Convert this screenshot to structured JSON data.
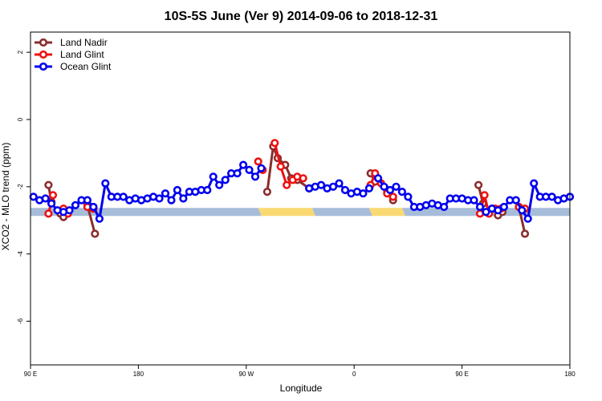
{
  "chart_data": {
    "type": "line",
    "title": "10S-5S June (Ver 9)   2014-09-06 to 2018-12-31",
    "xlabel": "Longitude",
    "ylabel": "XCO2 - MLO trend (ppm)",
    "xlim": [
      0,
      360
    ],
    "ylim": [
      -7.3,
      2.6
    ],
    "x_ticks": [
      {
        "value": 0,
        "label": "90 E"
      },
      {
        "value": 72,
        "label": "180"
      },
      {
        "value": 144,
        "label": "90 W"
      },
      {
        "value": 216,
        "label": "0"
      },
      {
        "value": 288,
        "label": "90 E"
      },
      {
        "value": 360,
        "label": "180"
      }
    ],
    "y_ticks": [
      {
        "value": 2,
        "label": "2"
      },
      {
        "value": 0,
        "label": "0"
      },
      {
        "value": -2,
        "label": "-2"
      },
      {
        "value": -4,
        "label": "-4"
      },
      {
        "value": -6,
        "label": "-6"
      }
    ],
    "land_ocean_band": {
      "y": -2.75,
      "segments": [
        {
          "x_start": 0,
          "x_end": 152,
          "kind": "ocean"
        },
        {
          "x_start": 152,
          "x_end": 188,
          "kind": "land"
        },
        {
          "x_start": 188,
          "x_end": 226,
          "kind": "ocean"
        },
        {
          "x_start": 226,
          "x_end": 248,
          "kind": "land"
        },
        {
          "x_start": 248,
          "x_end": 360,
          "kind": "ocean"
        }
      ],
      "colors": {
        "ocean": "#a6bcd9",
        "land": "#fad872"
      }
    },
    "legend": {
      "position": "top-left"
    },
    "series": [
      {
        "name": "Land Nadir",
        "color": "#8b2d2d",
        "segments": [
          {
            "x": [
              12,
              14
            ],
            "y": [
              -1.95,
              -2.45
            ]
          },
          {
            "x": [
              20,
              22
            ],
            "y": [
              -2.8,
              -2.9
            ]
          },
          {
            "x": [
              38,
              43
            ],
            "y": [
              -2.55,
              -3.4
            ]
          },
          {
            "x": [
              158,
              162,
              165,
              170,
              174
            ],
            "y": [
              -2.15,
              -0.8,
              -1.15,
              -1.35,
              -1.75
            ]
          },
          {
            "x": [
              178,
              186
            ],
            "y": [
              -1.8,
              -2.05
            ]
          },
          {
            "x": [
              227,
              230
            ],
            "y": [
              -1.6,
              -1.85
            ]
          },
          {
            "x": [
              238,
              242
            ],
            "y": [
              -2.1,
              -2.4
            ]
          },
          {
            "x": [
              299,
              302
            ],
            "y": [
              -1.95,
              -2.5
            ]
          },
          {
            "x": [
              312,
              315
            ],
            "y": [
              -2.85,
              -2.75
            ]
          },
          {
            "x": [
              326,
              330
            ],
            "y": [
              -2.6,
              -3.4
            ]
          }
        ]
      },
      {
        "name": "Land Glint",
        "color": "#ee1111",
        "segments": [
          {
            "x": [
              12,
              15
            ],
            "y": [
              -2.8,
              -2.25
            ]
          },
          {
            "x": [
              22,
              25
            ],
            "y": [
              -2.65,
              -2.8
            ]
          },
          {
            "x": [
              38,
              42
            ],
            "y": [
              -2.6,
              -2.65
            ]
          },
          {
            "x": [
              152,
              155
            ],
            "y": [
              -1.25,
              -1.5
            ]
          },
          {
            "x": [
              163,
              167,
              171,
              175,
              178,
              182
            ],
            "y": [
              -0.7,
              -1.4,
              -1.95,
              -1.8,
              -1.7,
              -1.75
            ]
          },
          {
            "x": [
              227,
              230,
              234,
              238,
              242
            ],
            "y": [
              -1.95,
              -1.6,
              -1.9,
              -2.2,
              -2.3
            ]
          },
          {
            "x": [
              300,
              303,
              306,
              310,
              314
            ],
            "y": [
              -2.8,
              -2.25,
              -2.8,
              -2.65,
              -2.65
            ]
          },
          {
            "x": [
              326,
              330
            ],
            "y": [
              -2.6,
              -2.65
            ]
          }
        ]
      },
      {
        "name": "Ocean Glint",
        "color": "#0000ee",
        "segments": [
          {
            "x": [
              2,
              6,
              10,
              14,
              18,
              22,
              26,
              30,
              34,
              38,
              42,
              46,
              50,
              54,
              58,
              62,
              66,
              70,
              74,
              78,
              82,
              86,
              90,
              94,
              98,
              102,
              106,
              110,
              114,
              118,
              122,
              126,
              130,
              134,
              138,
              142,
              146,
              150,
              154
            ],
            "y": [
              -2.3,
              -2.4,
              -2.35,
              -2.5,
              -2.7,
              -2.75,
              -2.7,
              -2.55,
              -2.4,
              -2.4,
              -2.6,
              -2.95,
              -1.9,
              -2.3,
              -2.3,
              -2.3,
              -2.4,
              -2.35,
              -2.4,
              -2.35,
              -2.3,
              -2.35,
              -2.2,
              -2.4,
              -2.1,
              -2.35,
              -2.15,
              -2.15,
              -2.1,
              -2.1,
              -1.7,
              -1.95,
              -1.8,
              -1.6,
              -1.6,
              -1.35,
              -1.5,
              -1.7,
              -1.45
            ]
          },
          {
            "x": [
              186,
              190,
              194,
              198,
              202,
              206,
              210,
              214,
              218,
              222,
              226
            ],
            "y": [
              -2.05,
              -2.0,
              -1.95,
              -2.05,
              -2.0,
              -1.9,
              -2.1,
              -2.2,
              -2.15,
              -2.2,
              -2.05
            ]
          },
          {
            "x": [
              232,
              236,
              240,
              244,
              248,
              252,
              256,
              260,
              264,
              268,
              272,
              276,
              280,
              284,
              288,
              292,
              296,
              300,
              304,
              308,
              312,
              316,
              320,
              324,
              328,
              332,
              336,
              340,
              344,
              348,
              352,
              356,
              360
            ],
            "y": [
              -1.75,
              -2.0,
              -2.1,
              -2.0,
              -2.15,
              -2.3,
              -2.6,
              -2.6,
              -2.55,
              -2.5,
              -2.55,
              -2.6,
              -2.35,
              -2.35,
              -2.35,
              -2.4,
              -2.4,
              -2.6,
              -2.75,
              -2.65,
              -2.7,
              -2.6,
              -2.4,
              -2.4,
              -2.7,
              -2.95,
              -1.9,
              -2.3,
              -2.3,
              -2.3,
              -2.4,
              -2.35,
              -2.3
            ]
          }
        ]
      }
    ]
  }
}
